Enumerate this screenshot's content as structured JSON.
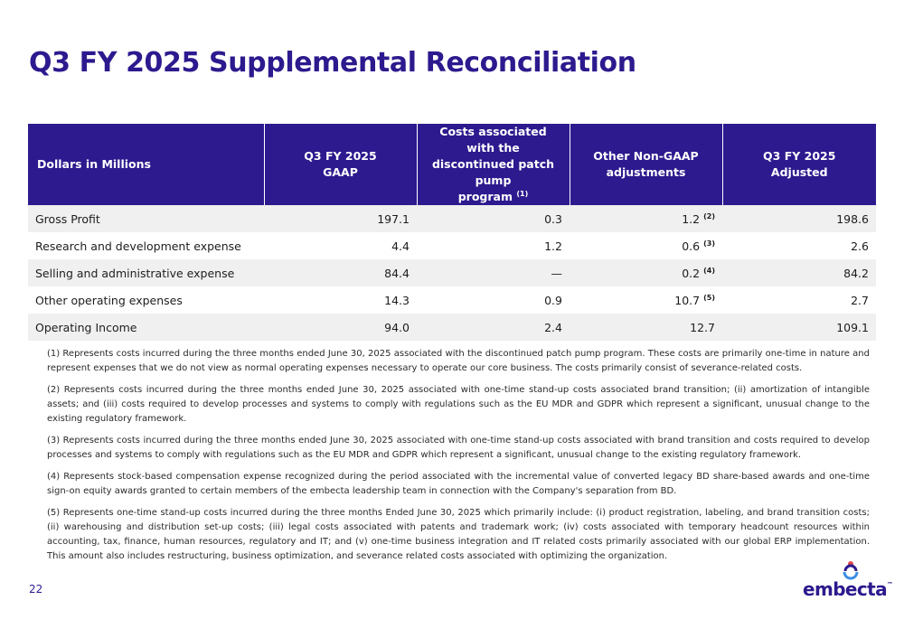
{
  "title": "Q3 FY 2025 Supplemental Reconciliation",
  "table": {
    "headers": [
      [
        "Dollars in Millions"
      ],
      [
        "Q3 FY 2025",
        "GAAP"
      ],
      [
        "Costs associated with the",
        "discontinued patch pump",
        "program"
      ],
      [
        "Other Non-GAAP",
        "adjustments"
      ],
      [
        "Q3 FY 2025",
        "Adjusted"
      ]
    ],
    "header_note": "(1)",
    "rows": [
      {
        "label": "Gross Profit",
        "gaap": "197.1",
        "patch": "0.3",
        "other": "1.2",
        "other_note": "(2)",
        "adjusted": "198.6"
      },
      {
        "label": "Research and development expense",
        "gaap": "4.4",
        "patch": "1.2",
        "other": "0.6",
        "other_note": "(3)",
        "adjusted": "2.6"
      },
      {
        "label": "Selling and administrative expense",
        "gaap": "84.4",
        "patch": "—",
        "other": "0.2",
        "other_note": "(4)",
        "adjusted": "84.2"
      },
      {
        "label": "Other operating expenses",
        "gaap": "14.3",
        "patch": "0.9",
        "other": "10.7",
        "other_note": "(5)",
        "adjusted": "2.7"
      },
      {
        "label": "Operating Income",
        "gaap": "94.0",
        "patch": "2.4",
        "other": "12.7",
        "other_note": "",
        "adjusted": "109.1"
      }
    ]
  },
  "footnotes": [
    "(1) Represents costs incurred during the three months ended June 30, 2025 associated with the discontinued patch pump program. These costs are primarily one-time in nature and represent expenses that we do not view as normal operating expenses necessary to operate our core business. The costs primarily consist of severance-related costs.",
    "(2) Represents costs incurred during the three months ended June 30, 2025 associated with one-time stand-up costs associated brand transition; (ii) amortization of intangible assets; and (iii) costs required to develop processes and systems to comply with regulations such as the EU MDR and GDPR which represent a significant, unusual change to the existing regulatory framework.",
    "(3) Represents costs incurred during the three months ended June 30, 2025 associated with one-time stand-up costs associated with brand transition and costs required to develop processes and systems to comply with regulations such as the EU MDR and GDPR which represent a significant, unusual change to the existing regulatory framework.",
    "(4) Represents stock-based compensation expense recognized during the period associated with the incremental value of converted legacy BD share-based awards and one-time sign-on equity awards granted to certain members of the embecta leadership team in connection with the Company's separation from BD.",
    "(5) Represents one-time stand-up costs incurred during the three months Ended June 30, 2025 which primarily include: (i) product registration, labeling, and brand transition costs; (ii) warehousing and distribution set-up costs; (iii) legal costs associated with patents and trademark work; (iv) costs associated with temporary headcount resources within accounting, tax, finance, human resources, regulatory and IT; and (v) one-time business integration and IT related costs primarily associated with our global ERP implementation. This amount also includes restructuring, business optimization, and severance related costs associated with optimizing the organization."
  ],
  "page_number": "22",
  "logo": {
    "wordmark": "embecta",
    "trademark": "™",
    "icon": "embecta-logo-icon"
  },
  "colors": {
    "brand": "#2c1a8e",
    "header_bg": "#2c1a8e",
    "row_shade": "#f0f0f0",
    "logo_red": "#e0484a",
    "logo_blue": "#3a8ee6"
  }
}
